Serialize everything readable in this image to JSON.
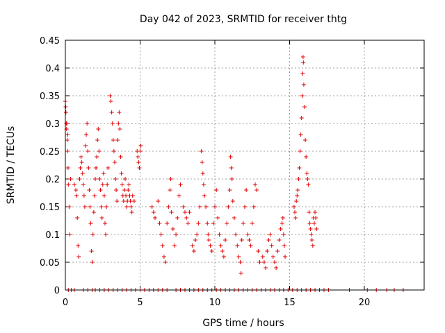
{
  "chart_data": {
    "type": "scatter",
    "title": "Day 042 of 2023, SRMTID for receiver thtg",
    "xlabel": "GPS time / hours",
    "ylabel": "SRMTID / TECUs",
    "xlim": [
      0,
      24
    ],
    "ylim": [
      0,
      0.45
    ],
    "xticks": [
      0,
      5,
      10,
      15,
      20
    ],
    "yticks": [
      0,
      0.05,
      0.1,
      0.15,
      0.2,
      0.25,
      0.3,
      0.35,
      0.4,
      0.45
    ],
    "xtick_labels": [
      "0",
      "5",
      "10",
      "15",
      "20"
    ],
    "ytick_labels": [
      "0",
      "0.05",
      "0.1",
      "0.15",
      "0.2",
      "0.25",
      "0.3",
      "0.35",
      "0.4",
      "0.45"
    ],
    "grid": true,
    "legend": "none",
    "marker": "plus",
    "marker_color": "#e00000",
    "series": [
      {
        "values": [
          [
            0.0,
            0.34
          ],
          [
            0.02,
            0.33
          ],
          [
            0.04,
            0.32
          ],
          [
            0.06,
            0.3
          ],
          [
            0.08,
            0.29
          ],
          [
            0.1,
            0.3
          ],
          [
            0.12,
            0.27
          ],
          [
            0.14,
            0.25
          ],
          [
            0.16,
            0.28
          ],
          [
            0.18,
            0.22
          ],
          [
            0.2,
            0.19
          ],
          [
            0.25,
            0.15
          ],
          [
            0.3,
            0.1
          ],
          [
            0.35,
            0.2
          ],
          [
            0.6,
            0.19
          ],
          [
            0.7,
            0.18
          ],
          [
            0.75,
            0.17
          ],
          [
            0.8,
            0.13
          ],
          [
            0.85,
            0.08
          ],
          [
            0.9,
            0.06
          ],
          [
            0.95,
            0.2
          ],
          [
            1.0,
            0.22
          ],
          [
            1.05,
            0.24
          ],
          [
            1.1,
            0.23
          ],
          [
            1.15,
            0.21
          ],
          [
            1.2,
            0.19
          ],
          [
            1.25,
            0.17
          ],
          [
            1.3,
            0.15
          ],
          [
            1.35,
            0.26
          ],
          [
            1.4,
            0.28
          ],
          [
            1.45,
            0.3
          ],
          [
            1.5,
            0.25
          ],
          [
            1.55,
            0.22
          ],
          [
            1.6,
            0.18
          ],
          [
            1.65,
            0.15
          ],
          [
            1.7,
            0.12
          ],
          [
            1.75,
            0.07
          ],
          [
            1.8,
            0.05
          ],
          [
            1.85,
            0.1
          ],
          [
            1.9,
            0.14
          ],
          [
            1.95,
            0.17
          ],
          [
            2.0,
            0.2
          ],
          [
            2.05,
            0.22
          ],
          [
            2.1,
            0.24
          ],
          [
            2.15,
            0.27
          ],
          [
            2.2,
            0.29
          ],
          [
            2.25,
            0.25
          ],
          [
            2.3,
            0.2
          ],
          [
            2.35,
            0.18
          ],
          [
            2.4,
            0.15
          ],
          [
            2.45,
            0.13
          ],
          [
            2.5,
            0.19
          ],
          [
            2.55,
            0.21
          ],
          [
            2.6,
            0.17
          ],
          [
            2.65,
            0.12
          ],
          [
            2.7,
            0.1
          ],
          [
            2.75,
            0.15
          ],
          [
            2.8,
            0.19
          ],
          [
            2.85,
            0.22
          ],
          [
            3.0,
            0.35
          ],
          [
            3.05,
            0.34
          ],
          [
            3.1,
            0.32
          ],
          [
            3.15,
            0.3
          ],
          [
            3.2,
            0.27
          ],
          [
            3.25,
            0.25
          ],
          [
            3.3,
            0.23
          ],
          [
            3.35,
            0.2
          ],
          [
            3.4,
            0.18
          ],
          [
            3.45,
            0.16
          ],
          [
            3.5,
            0.27
          ],
          [
            3.55,
            0.3
          ],
          [
            3.6,
            0.32
          ],
          [
            3.65,
            0.29
          ],
          [
            3.7,
            0.24
          ],
          [
            3.75,
            0.21
          ],
          [
            3.8,
            0.19
          ],
          [
            3.85,
            0.17
          ],
          [
            3.9,
            0.16
          ],
          [
            3.95,
            0.18
          ],
          [
            4.0,
            0.2
          ],
          [
            4.05,
            0.17
          ],
          [
            4.1,
            0.15
          ],
          [
            4.15,
            0.16
          ],
          [
            4.2,
            0.18
          ],
          [
            4.25,
            0.19
          ],
          [
            4.3,
            0.17
          ],
          [
            4.35,
            0.16
          ],
          [
            4.4,
            0.15
          ],
          [
            4.45,
            0.14
          ],
          [
            4.5,
            0.17
          ],
          [
            4.6,
            0.16
          ],
          [
            4.8,
            0.25
          ],
          [
            4.85,
            0.24
          ],
          [
            4.9,
            0.23
          ],
          [
            4.95,
            0.22
          ],
          [
            5.0,
            0.25
          ],
          [
            5.05,
            0.26
          ],
          [
            5.8,
            0.15
          ],
          [
            5.9,
            0.14
          ],
          [
            6.0,
            0.13
          ],
          [
            6.2,
            0.16
          ],
          [
            6.3,
            0.12
          ],
          [
            6.4,
            0.1
          ],
          [
            6.5,
            0.08
          ],
          [
            6.6,
            0.06
          ],
          [
            6.7,
            0.05
          ],
          [
            6.8,
            0.12
          ],
          [
            6.9,
            0.15
          ],
          [
            7.0,
            0.18
          ],
          [
            7.05,
            0.2
          ],
          [
            7.1,
            0.14
          ],
          [
            7.2,
            0.11
          ],
          [
            7.3,
            0.08
          ],
          [
            7.4,
            0.1
          ],
          [
            7.5,
            0.13
          ],
          [
            7.6,
            0.17
          ],
          [
            7.7,
            0.19
          ],
          [
            7.9,
            0.15
          ],
          [
            8.0,
            0.14
          ],
          [
            8.1,
            0.13
          ],
          [
            8.2,
            0.12
          ],
          [
            8.3,
            0.14
          ],
          [
            8.5,
            0.08
          ],
          [
            8.6,
            0.07
          ],
          [
            8.7,
            0.09
          ],
          [
            8.8,
            0.1
          ],
          [
            8.9,
            0.12
          ],
          [
            9.0,
            0.15
          ],
          [
            9.1,
            0.25
          ],
          [
            9.15,
            0.23
          ],
          [
            9.2,
            0.21
          ],
          [
            9.25,
            0.19
          ],
          [
            9.3,
            0.17
          ],
          [
            9.4,
            0.15
          ],
          [
            9.5,
            0.12
          ],
          [
            9.55,
            0.1
          ],
          [
            9.6,
            0.09
          ],
          [
            9.7,
            0.08
          ],
          [
            9.8,
            0.07
          ],
          [
            9.9,
            0.12
          ],
          [
            10.0,
            0.15
          ],
          [
            10.1,
            0.18
          ],
          [
            10.2,
            0.13
          ],
          [
            10.3,
            0.1
          ],
          [
            10.4,
            0.08
          ],
          [
            10.5,
            0.07
          ],
          [
            10.6,
            0.06
          ],
          [
            10.7,
            0.09
          ],
          [
            10.8,
            0.12
          ],
          [
            10.9,
            0.15
          ],
          [
            11.0,
            0.18
          ],
          [
            11.05,
            0.24
          ],
          [
            11.1,
            0.22
          ],
          [
            11.15,
            0.2
          ],
          [
            11.2,
            0.16
          ],
          [
            11.3,
            0.13
          ],
          [
            11.4,
            0.1
          ],
          [
            11.5,
            0.08
          ],
          [
            11.6,
            0.06
          ],
          [
            11.7,
            0.05
          ],
          [
            11.75,
            0.03
          ],
          [
            11.8,
            0.09
          ],
          [
            11.9,
            0.12
          ],
          [
            12.0,
            0.15
          ],
          [
            12.1,
            0.18
          ],
          [
            12.2,
            0.1
          ],
          [
            12.3,
            0.09
          ],
          [
            12.4,
            0.08
          ],
          [
            12.5,
            0.12
          ],
          [
            12.6,
            0.15
          ],
          [
            12.7,
            0.19
          ],
          [
            12.8,
            0.18
          ],
          [
            12.9,
            0.07
          ],
          [
            13.0,
            0.05
          ],
          [
            13.2,
            0.06
          ],
          [
            13.3,
            0.05
          ],
          [
            13.4,
            0.04
          ],
          [
            13.5,
            0.07
          ],
          [
            13.6,
            0.09
          ],
          [
            13.7,
            0.1
          ],
          [
            13.8,
            0.08
          ],
          [
            13.9,
            0.06
          ],
          [
            14.0,
            0.05
          ],
          [
            14.1,
            0.04
          ],
          [
            14.2,
            0.07
          ],
          [
            14.3,
            0.09
          ],
          [
            14.4,
            0.11
          ],
          [
            14.5,
            0.12
          ],
          [
            14.55,
            0.13
          ],
          [
            14.6,
            0.1
          ],
          [
            14.65,
            0.08
          ],
          [
            14.7,
            0.06
          ],
          [
            15.3,
            0.15
          ],
          [
            15.35,
            0.14
          ],
          [
            15.4,
            0.13
          ],
          [
            15.45,
            0.16
          ],
          [
            15.5,
            0.17
          ],
          [
            15.55,
            0.18
          ],
          [
            15.6,
            0.2
          ],
          [
            15.65,
            0.22
          ],
          [
            15.7,
            0.25
          ],
          [
            15.75,
            0.28
          ],
          [
            15.8,
            0.31
          ],
          [
            15.85,
            0.35
          ],
          [
            15.88,
            0.39
          ],
          [
            15.9,
            0.42
          ],
          [
            15.92,
            0.41
          ],
          [
            15.95,
            0.37
          ],
          [
            16.0,
            0.33
          ],
          [
            16.05,
            0.27
          ],
          [
            16.1,
            0.24
          ],
          [
            16.15,
            0.21
          ],
          [
            16.2,
            0.2
          ],
          [
            16.25,
            0.19
          ],
          [
            16.3,
            0.14
          ],
          [
            16.35,
            0.12
          ],
          [
            16.4,
            0.11
          ],
          [
            16.45,
            0.1
          ],
          [
            16.5,
            0.09
          ],
          [
            16.55,
            0.08
          ],
          [
            16.6,
            0.13
          ],
          [
            16.65,
            0.12
          ],
          [
            16.7,
            0.14
          ],
          [
            16.75,
            0.13
          ],
          [
            16.8,
            0.11
          ],
          [
            0.2,
            0.0
          ],
          [
            0.4,
            0.0
          ],
          [
            0.6,
            0.0
          ],
          [
            1.2,
            0.0
          ],
          [
            1.5,
            0.0
          ],
          [
            1.8,
            0.0
          ],
          [
            2.0,
            0.0
          ],
          [
            2.3,
            0.0
          ],
          [
            2.6,
            0.0
          ],
          [
            2.9,
            0.0
          ],
          [
            3.2,
            0.0
          ],
          [
            3.5,
            0.0
          ],
          [
            3.8,
            0.0
          ],
          [
            4.1,
            0.0
          ],
          [
            4.4,
            0.0
          ],
          [
            4.7,
            0.0
          ],
          [
            5.0,
            0.0
          ],
          [
            5.3,
            0.0
          ],
          [
            5.6,
            0.0
          ],
          [
            5.9,
            0.0
          ],
          [
            6.2,
            0.0
          ],
          [
            6.5,
            0.0
          ],
          [
            6.8,
            0.0
          ],
          [
            7.4,
            0.0
          ],
          [
            7.7,
            0.0
          ],
          [
            8.0,
            0.0
          ],
          [
            8.3,
            0.0
          ],
          [
            8.6,
            0.0
          ],
          [
            8.9,
            0.0
          ],
          [
            9.2,
            0.0
          ],
          [
            9.5,
            0.0
          ],
          [
            9.8,
            0.0
          ],
          [
            10.1,
            0.0
          ],
          [
            10.4,
            0.0
          ],
          [
            10.7,
            0.0
          ],
          [
            11.0,
            0.0
          ],
          [
            11.3,
            0.0
          ],
          [
            11.6,
            0.0
          ],
          [
            11.9,
            0.0
          ],
          [
            12.2,
            0.0
          ],
          [
            12.5,
            0.0
          ],
          [
            12.8,
            0.0
          ],
          [
            13.1,
            0.0
          ],
          [
            13.4,
            0.0
          ],
          [
            13.7,
            0.0
          ],
          [
            14.0,
            0.0
          ],
          [
            14.3,
            0.0
          ],
          [
            14.6,
            0.0
          ],
          [
            14.9,
            0.0
          ],
          [
            15.2,
            0.0
          ],
          [
            15.5,
            0.0
          ],
          [
            15.8,
            0.0
          ],
          [
            16.1,
            0.0
          ],
          [
            16.4,
            0.0
          ],
          [
            16.7,
            0.0
          ],
          [
            17.0,
            0.0
          ],
          [
            17.3,
            0.0
          ],
          [
            17.6,
            0.0
          ],
          [
            19.0,
            0.0
          ],
          [
            20.2,
            0.0
          ],
          [
            20.8,
            0.0
          ],
          [
            21.5,
            0.0
          ],
          [
            22.0,
            0.0
          ],
          [
            22.6,
            0.0
          ]
        ]
      }
    ]
  }
}
